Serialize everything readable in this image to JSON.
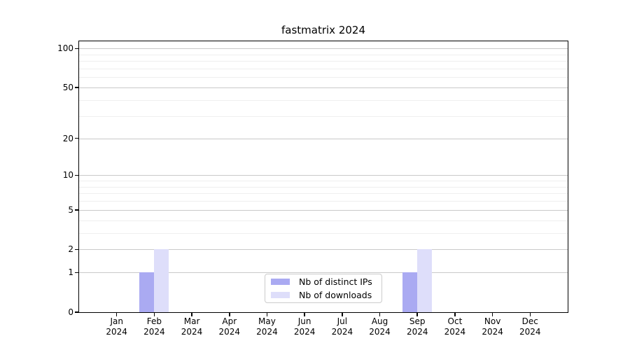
{
  "title": "fastmatrix 2024",
  "colors": {
    "distinct_ips": "#aaaaf2",
    "downloads": "#dedefa",
    "grid_major": "#c9c9c9",
    "grid_minor": "#efefef",
    "axis": "#000000",
    "legend_border": "#cccccc",
    "background": "#ffffff"
  },
  "chart_data": {
    "type": "bar",
    "title": "fastmatrix 2024",
    "categories": [
      "Jan",
      "Feb",
      "Mar",
      "Apr",
      "May",
      "Jun",
      "Jul",
      "Aug",
      "Sep",
      "Oct",
      "Nov",
      "Dec"
    ],
    "year": "2024",
    "series": [
      {
        "name": "Nb of distinct IPs",
        "color": "#aaaaf2",
        "values": [
          0,
          1,
          0,
          0,
          0,
          0,
          0,
          0,
          1,
          0,
          0,
          0
        ]
      },
      {
        "name": "Nb of downloads",
        "color": "#dedefa",
        "values": [
          0,
          2,
          0,
          0,
          0,
          0,
          0,
          0,
          2,
          0,
          0,
          0
        ]
      }
    ],
    "xlabel": "",
    "ylabel": "",
    "yscale": "log1p",
    "yticks": [
      0,
      1,
      2,
      5,
      10,
      20,
      50,
      100
    ],
    "minor_yticks": [
      3,
      4,
      6,
      7,
      8,
      9,
      30,
      40,
      60,
      70,
      80,
      90
    ],
    "ylim": [
      0,
      113.6
    ],
    "grid": true,
    "legend_position": "bottom-center"
  }
}
